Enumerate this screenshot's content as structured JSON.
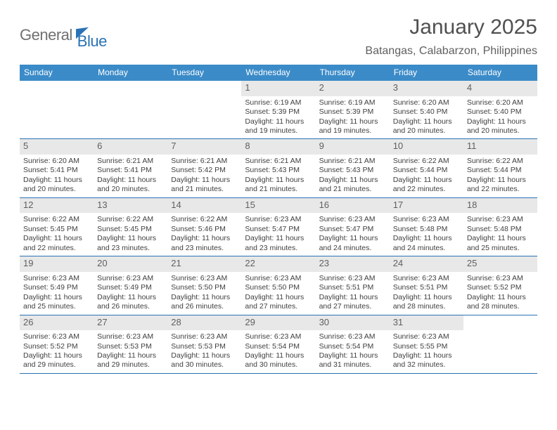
{
  "logo": {
    "word1": "General",
    "word2": "Blue"
  },
  "title": "January 2025",
  "location": "Batangas, Calabarzon, Philippines",
  "colors": {
    "header_bg": "#3b8bc8",
    "header_text": "#ffffff",
    "accent": "#2a72b5",
    "daynum_bg": "#e8e8e8",
    "text": "#404040",
    "background": "#ffffff"
  },
  "daysOfWeek": [
    "Sunday",
    "Monday",
    "Tuesday",
    "Wednesday",
    "Thursday",
    "Friday",
    "Saturday"
  ],
  "weeks": [
    [
      {
        "empty": true
      },
      {
        "empty": true
      },
      {
        "empty": true
      },
      {
        "num": "1",
        "sunrise": "6:19 AM",
        "sunset": "5:39 PM",
        "dlh": "11",
        "dlm": "19"
      },
      {
        "num": "2",
        "sunrise": "6:19 AM",
        "sunset": "5:39 PM",
        "dlh": "11",
        "dlm": "19"
      },
      {
        "num": "3",
        "sunrise": "6:20 AM",
        "sunset": "5:40 PM",
        "dlh": "11",
        "dlm": "20"
      },
      {
        "num": "4",
        "sunrise": "6:20 AM",
        "sunset": "5:40 PM",
        "dlh": "11",
        "dlm": "20"
      }
    ],
    [
      {
        "num": "5",
        "sunrise": "6:20 AM",
        "sunset": "5:41 PM",
        "dlh": "11",
        "dlm": "20"
      },
      {
        "num": "6",
        "sunrise": "6:21 AM",
        "sunset": "5:41 PM",
        "dlh": "11",
        "dlm": "20"
      },
      {
        "num": "7",
        "sunrise": "6:21 AM",
        "sunset": "5:42 PM",
        "dlh": "11",
        "dlm": "21"
      },
      {
        "num": "8",
        "sunrise": "6:21 AM",
        "sunset": "5:43 PM",
        "dlh": "11",
        "dlm": "21"
      },
      {
        "num": "9",
        "sunrise": "6:21 AM",
        "sunset": "5:43 PM",
        "dlh": "11",
        "dlm": "21"
      },
      {
        "num": "10",
        "sunrise": "6:22 AM",
        "sunset": "5:44 PM",
        "dlh": "11",
        "dlm": "22"
      },
      {
        "num": "11",
        "sunrise": "6:22 AM",
        "sunset": "5:44 PM",
        "dlh": "11",
        "dlm": "22"
      }
    ],
    [
      {
        "num": "12",
        "sunrise": "6:22 AM",
        "sunset": "5:45 PM",
        "dlh": "11",
        "dlm": "22"
      },
      {
        "num": "13",
        "sunrise": "6:22 AM",
        "sunset": "5:45 PM",
        "dlh": "11",
        "dlm": "23"
      },
      {
        "num": "14",
        "sunrise": "6:22 AM",
        "sunset": "5:46 PM",
        "dlh": "11",
        "dlm": "23"
      },
      {
        "num": "15",
        "sunrise": "6:23 AM",
        "sunset": "5:47 PM",
        "dlh": "11",
        "dlm": "23"
      },
      {
        "num": "16",
        "sunrise": "6:23 AM",
        "sunset": "5:47 PM",
        "dlh": "11",
        "dlm": "24"
      },
      {
        "num": "17",
        "sunrise": "6:23 AM",
        "sunset": "5:48 PM",
        "dlh": "11",
        "dlm": "24"
      },
      {
        "num": "18",
        "sunrise": "6:23 AM",
        "sunset": "5:48 PM",
        "dlh": "11",
        "dlm": "25"
      }
    ],
    [
      {
        "num": "19",
        "sunrise": "6:23 AM",
        "sunset": "5:49 PM",
        "dlh": "11",
        "dlm": "25"
      },
      {
        "num": "20",
        "sunrise": "6:23 AM",
        "sunset": "5:49 PM",
        "dlh": "11",
        "dlm": "26"
      },
      {
        "num": "21",
        "sunrise": "6:23 AM",
        "sunset": "5:50 PM",
        "dlh": "11",
        "dlm": "26"
      },
      {
        "num": "22",
        "sunrise": "6:23 AM",
        "sunset": "5:50 PM",
        "dlh": "11",
        "dlm": "27"
      },
      {
        "num": "23",
        "sunrise": "6:23 AM",
        "sunset": "5:51 PM",
        "dlh": "11",
        "dlm": "27"
      },
      {
        "num": "24",
        "sunrise": "6:23 AM",
        "sunset": "5:51 PM",
        "dlh": "11",
        "dlm": "28"
      },
      {
        "num": "25",
        "sunrise": "6:23 AM",
        "sunset": "5:52 PM",
        "dlh": "11",
        "dlm": "28"
      }
    ],
    [
      {
        "num": "26",
        "sunrise": "6:23 AM",
        "sunset": "5:52 PM",
        "dlh": "11",
        "dlm": "29"
      },
      {
        "num": "27",
        "sunrise": "6:23 AM",
        "sunset": "5:53 PM",
        "dlh": "11",
        "dlm": "29"
      },
      {
        "num": "28",
        "sunrise": "6:23 AM",
        "sunset": "5:53 PM",
        "dlh": "11",
        "dlm": "30"
      },
      {
        "num": "29",
        "sunrise": "6:23 AM",
        "sunset": "5:54 PM",
        "dlh": "11",
        "dlm": "30"
      },
      {
        "num": "30",
        "sunrise": "6:23 AM",
        "sunset": "5:54 PM",
        "dlh": "11",
        "dlm": "31"
      },
      {
        "num": "31",
        "sunrise": "6:23 AM",
        "sunset": "5:55 PM",
        "dlh": "11",
        "dlm": "32"
      },
      {
        "empty": true
      }
    ]
  ],
  "labels": {
    "sunrise": "Sunrise:",
    "sunset": "Sunset:",
    "daylight": "Daylight:",
    "hours_and": "hours and",
    "minutes": "minutes."
  }
}
